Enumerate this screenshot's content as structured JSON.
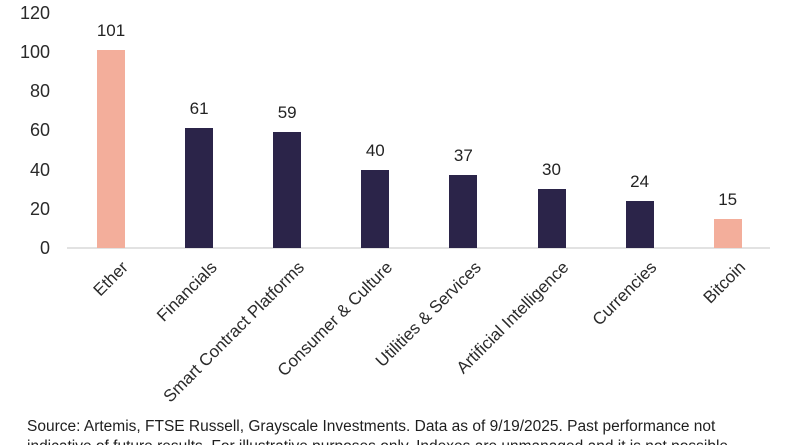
{
  "chart_data": {
    "type": "bar",
    "categories": [
      "Ether",
      "Financials",
      "Smart Contract Platforms",
      "Consumer & Culture",
      "Utilities & Services",
      "Artificial Intelligence",
      "Currencies",
      "Bitcoin"
    ],
    "values": [
      101,
      61,
      59,
      40,
      37,
      30,
      24,
      15
    ],
    "bar_colors": [
      "#f3ae9b",
      "#2b2449",
      "#2b2449",
      "#2b2449",
      "#2b2449",
      "#2b2449",
      "#2b2449",
      "#f3ae9b"
    ],
    "yticks": [
      0,
      20,
      40,
      60,
      80,
      100,
      120
    ],
    "ylim": [
      0,
      120
    ],
    "title": "",
    "xlabel": "",
    "ylabel": "",
    "grid": false,
    "legend": false,
    "value_labels_shown": true,
    "x_label_rotation_deg": 45
  },
  "colors": {
    "highlight": "#f3ae9b",
    "primary": "#2b2449",
    "axis_line": "#e2e2e2",
    "text": "#232323"
  },
  "footer": {
    "line1": "Source: Artemis, FTSE Russell, Grayscale Investments. Data as of 9/19/2025. Past performance not",
    "line2": "indicative of future results. For illustrative purposes only. Indexes are unmanaged and it is not possible"
  }
}
